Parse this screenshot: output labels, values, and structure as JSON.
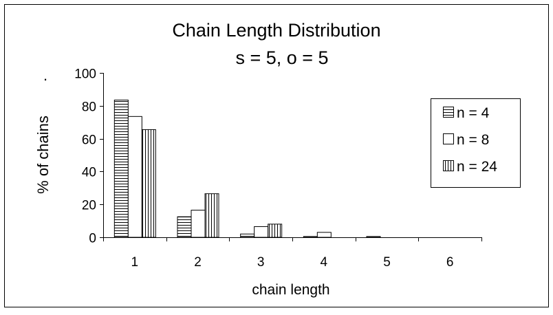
{
  "chart_data": {
    "type": "bar",
    "title": "Chain Length Distribution",
    "subtitle": "s = 5, o = 5",
    "xlabel": "chain length",
    "ylabel": "% of chains",
    "corner_mark": ".",
    "categories": [
      "1",
      "2",
      "3",
      "4",
      "5",
      "6"
    ],
    "ylim": [
      0,
      100
    ],
    "yticks": [
      "0",
      "20",
      "40",
      "60",
      "80",
      "100"
    ],
    "grid": false,
    "legend_position": "right",
    "series": [
      {
        "name": "n = 4",
        "pattern": "horizontal-stripes",
        "values": [
          83.5,
          12.5,
          2,
          0.5,
          0.5,
          0
        ]
      },
      {
        "name": "n = 8",
        "pattern": "solid-white",
        "values": [
          73.5,
          16.5,
          6.5,
          3,
          0,
          0
        ]
      },
      {
        "name": "n = 24",
        "pattern": "vertical-stripes",
        "values": [
          65.5,
          26.5,
          8,
          0,
          0,
          0
        ]
      }
    ]
  }
}
